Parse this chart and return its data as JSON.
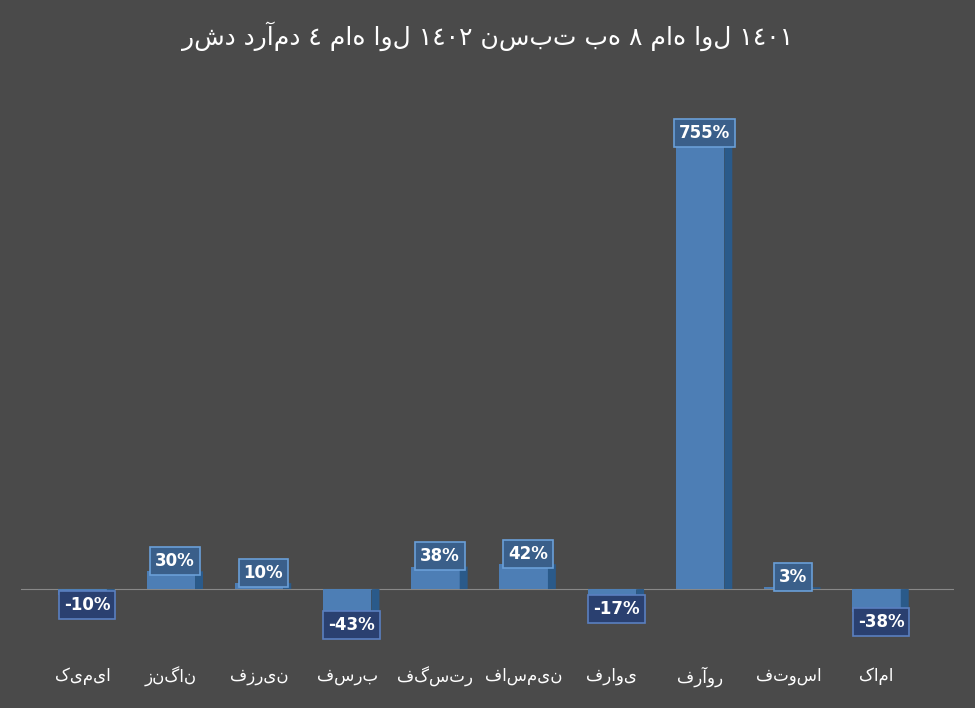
{
  "title": "رشد درآمد ٤ ماه اول ١٤٠٢ نسبت به ٨ ماه اول ١٤٠١",
  "categories": [
    "کیمیا",
    "زنگان",
    "فزرین",
    "فسرب",
    "فگستر",
    "فاسمین",
    "فراوی",
    "فرآور",
    "فتوسا",
    "کاما"
  ],
  "values": [
    -10,
    30,
    10,
    -43,
    38,
    42,
    -17,
    755,
    3,
    -38
  ],
  "bar_color_main": "#4d7eb5",
  "bar_color_top": "#6fa3d6",
  "bar_color_side": "#2a5a8a",
  "background_color": "#4a4a4a",
  "text_color": "#ffffff",
  "label_box_color_pos": "#4a6fa5",
  "label_box_color_neg": "#2a4a7a",
  "title_fontsize": 18,
  "tick_fontsize": 12,
  "label_fontsize": 12
}
